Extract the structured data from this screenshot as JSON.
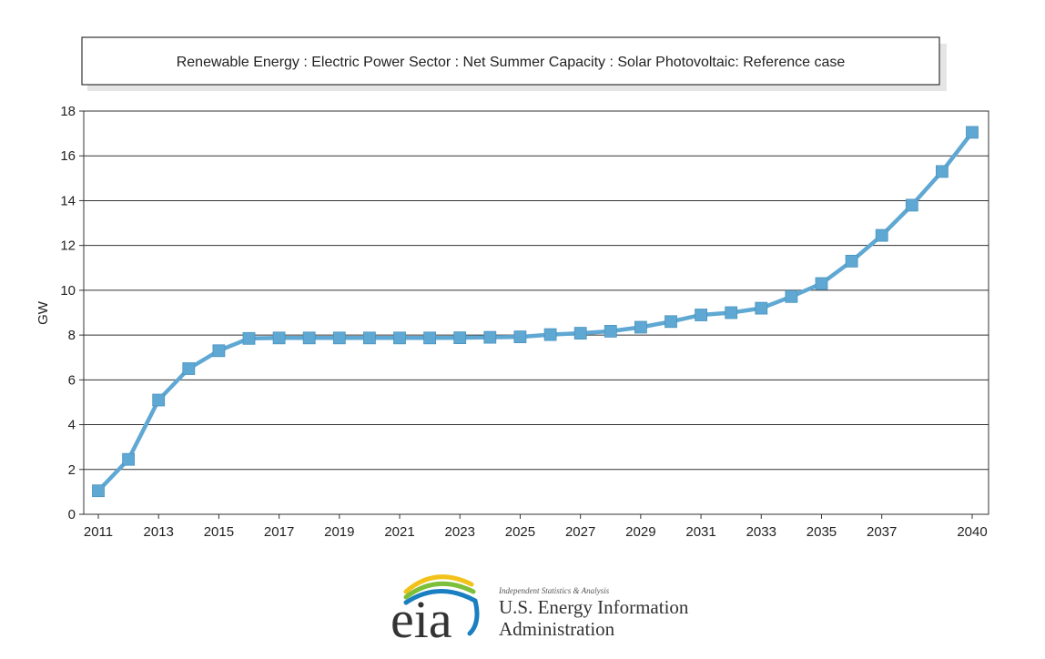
{
  "chart_data": {
    "type": "line",
    "title": "Renewable Energy : Electric Power Sector : Net Summer Capacity : Solar Photovoltaic: Reference case",
    "xlabel": "",
    "ylabel": "GW",
    "xlim": [
      2011,
      2040
    ],
    "ylim": [
      0,
      18
    ],
    "x_ticks": [
      2011,
      2013,
      2015,
      2017,
      2019,
      2021,
      2023,
      2025,
      2027,
      2029,
      2031,
      2033,
      2035,
      2037,
      2040
    ],
    "y_ticks": [
      0,
      2,
      4,
      6,
      8,
      10,
      12,
      14,
      16,
      18
    ],
    "grid": true,
    "legend": "none",
    "series": [
      {
        "color": "#5fa8d3",
        "x": [
          2011,
          2012,
          2013,
          2014,
          2015,
          2016,
          2017,
          2018,
          2019,
          2020,
          2021,
          2022,
          2023,
          2024,
          2025,
          2026,
          2027,
          2028,
          2029,
          2030,
          2031,
          2032,
          2033,
          2034,
          2035,
          2036,
          2037,
          2038,
          2039,
          2040
        ],
        "values": [
          1.05,
          2.45,
          5.1,
          6.5,
          7.3,
          7.85,
          7.87,
          7.87,
          7.87,
          7.87,
          7.87,
          7.87,
          7.88,
          7.9,
          7.92,
          8.02,
          8.08,
          8.17,
          8.35,
          8.6,
          8.9,
          9.0,
          9.2,
          9.72,
          10.3,
          11.3,
          12.45,
          13.8,
          15.3,
          17.05
        ]
      }
    ]
  },
  "logo": {
    "wordmark": "eia",
    "tagline": "Independent Statistics & Analysis",
    "name_line1": "U.S. Energy Information",
    "name_line2": "Administration",
    "colors": {
      "swoosh_blue": "#1a7fc1",
      "swoosh_green": "#7cbf3a",
      "swoosh_yellow": "#f2c21b"
    }
  }
}
